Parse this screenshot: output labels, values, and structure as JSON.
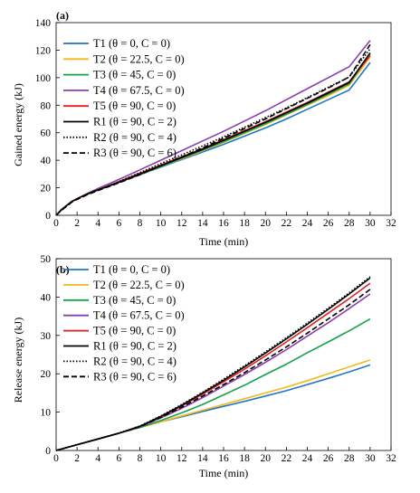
{
  "chart_data": [
    {
      "type": "line",
      "panel_label": "(a)",
      "xlabel": "Time (min)",
      "ylabel": "Gained energy (kJ)",
      "xlim": [
        0,
        32
      ],
      "ylim": [
        0,
        140
      ],
      "xticks": [
        "0",
        "2",
        "4",
        "6",
        "8",
        "10",
        "12",
        "14",
        "16",
        "18",
        "20",
        "22",
        "24",
        "26",
        "28",
        "30",
        "32"
      ],
      "yticks": [
        "0",
        "20",
        "40",
        "60",
        "80",
        "100",
        "120",
        "140"
      ],
      "grid": false,
      "legend_position": "top-left",
      "series": [
        {
          "name": "T1 (θ = 0, C = 0)",
          "color": "#1f77c4",
          "dash": "solid",
          "x": [
            0,
            0.5,
            1,
            1.5,
            2,
            3,
            4,
            6,
            8,
            10,
            12,
            14,
            16,
            18,
            20,
            22,
            24,
            26,
            28,
            30
          ],
          "y": [
            0,
            4,
            7,
            10,
            12,
            15.5,
            18.5,
            24,
            29.5,
            35,
            40.5,
            46,
            51.5,
            57.5,
            63.5,
            70,
            77,
            84,
            91,
            111
          ]
        },
        {
          "name": "T2 (θ = 22.5, C = 0)",
          "color": "#f2b71c",
          "dash": "solid",
          "x": [
            0,
            0.5,
            1,
            1.5,
            2,
            3,
            4,
            6,
            8,
            10,
            12,
            14,
            16,
            18,
            20,
            22,
            24,
            26,
            28,
            30
          ],
          "y": [
            0,
            4,
            7,
            10,
            12,
            15.5,
            18.5,
            24,
            29.5,
            35.5,
            41,
            47,
            53,
            59.5,
            66,
            73,
            80,
            87,
            94.5,
            115
          ]
        },
        {
          "name": "T3 (θ = 45, C = 0)",
          "color": "#16a04a",
          "dash": "solid",
          "x": [
            0,
            0.5,
            1,
            1.5,
            2,
            3,
            4,
            6,
            8,
            10,
            12,
            14,
            16,
            18,
            20,
            22,
            24,
            26,
            28,
            30
          ],
          "y": [
            0,
            4,
            7,
            10,
            12,
            15.5,
            18.5,
            24,
            29.5,
            35.5,
            41.5,
            47.5,
            53.5,
            60,
            66.5,
            73.5,
            80.5,
            88,
            95.5,
            117
          ]
        },
        {
          "name": "T4 (θ = 67.5, C = 0)",
          "color": "#8a3fb0",
          "dash": "solid",
          "x": [
            0,
            0.5,
            1,
            1.5,
            2,
            3,
            4,
            6,
            8,
            10,
            12,
            14,
            16,
            18,
            20,
            22,
            24,
            26,
            28,
            30
          ],
          "y": [
            0,
            4,
            7,
            10,
            12,
            16,
            19.5,
            26,
            33,
            40,
            47,
            54,
            61,
            68.5,
            76,
            84,
            92,
            100,
            108,
            127
          ]
        },
        {
          "name": "T5 (θ = 90, C = 0)",
          "color": "#e02020",
          "dash": "solid",
          "x": [
            0,
            0.5,
            1,
            1.5,
            2,
            3,
            4,
            6,
            8,
            10,
            12,
            14,
            16,
            18,
            20,
            22,
            24,
            26,
            28,
            30
          ],
          "y": [
            0,
            4,
            7,
            10,
            12,
            15.5,
            18.5,
            24.5,
            30.5,
            36.5,
            42.5,
            48.5,
            55,
            61.5,
            68,
            75,
            82,
            89.5,
            97,
            116
          ]
        },
        {
          "name": "R1 (θ = 90, C = 2)",
          "color": "#000000",
          "dash": "solid",
          "x": [
            0,
            0.5,
            1,
            1.5,
            2,
            3,
            4,
            6,
            8,
            10,
            12,
            14,
            16,
            18,
            20,
            22,
            24,
            26,
            28,
            30
          ],
          "y": [
            0,
            4,
            7,
            10,
            12,
            15.5,
            18.5,
            24,
            30,
            36,
            42,
            48,
            54.5,
            61,
            67.5,
            74.5,
            81.5,
            89,
            96.5,
            118
          ]
        },
        {
          "name": "R2 (θ = 90, C = 4)",
          "color": "#000000",
          "dash": "dotted",
          "x": [
            0,
            0.5,
            1,
            1.5,
            2,
            3,
            4,
            6,
            8,
            10,
            12,
            14,
            16,
            18,
            20,
            22,
            24,
            26,
            28,
            30
          ],
          "y": [
            0,
            4,
            7,
            10,
            12,
            15.5,
            18.5,
            24.5,
            31,
            37.5,
            44,
            50.5,
            57,
            64,
            71,
            78,
            85.5,
            93,
            100.5,
            121
          ]
        },
        {
          "name": "R3 (θ = 90, C = 6)",
          "color": "#000000",
          "dash": "dashed",
          "x": [
            0,
            0.5,
            1,
            1.5,
            2,
            3,
            4,
            6,
            8,
            10,
            12,
            14,
            16,
            18,
            20,
            22,
            24,
            26,
            28,
            30
          ],
          "y": [
            0,
            3.5,
            6.5,
            9.5,
            11.5,
            15,
            18,
            23.5,
            29.5,
            36,
            42.5,
            49,
            56,
            63,
            70,
            77.5,
            85,
            92.5,
            100.5,
            124
          ]
        }
      ]
    },
    {
      "type": "line",
      "panel_label": "(b)",
      "xlabel": "Time (min)",
      "ylabel": "Release energy (kJ)",
      "xlim": [
        0,
        32
      ],
      "ylim": [
        0,
        50
      ],
      "xticks": [
        "0",
        "2",
        "4",
        "6",
        "8",
        "10",
        "12",
        "14",
        "16",
        "18",
        "20",
        "22",
        "24",
        "26",
        "28",
        "30",
        "32"
      ],
      "yticks": [
        "0",
        "10",
        "20",
        "30",
        "40",
        "50"
      ],
      "grid": false,
      "legend_position": "top-left",
      "series": [
        {
          "name": "T1 (θ = 0, C = 0)",
          "color": "#1f77c4",
          "dash": "solid",
          "x": [
            0,
            2,
            4,
            6,
            8,
            10,
            12,
            14,
            16,
            18,
            20,
            22,
            24,
            26,
            28,
            30
          ],
          "y": [
            0,
            1.5,
            3,
            4.5,
            6,
            7.5,
            8.8,
            10.2,
            11.5,
            12.8,
            14.2,
            15.6,
            17.2,
            18.8,
            20.5,
            22.3
          ]
        },
        {
          "name": "T2 (θ = 22.5, C = 0)",
          "color": "#f2b71c",
          "dash": "solid",
          "x": [
            0,
            2,
            4,
            6,
            8,
            10,
            12,
            14,
            16,
            18,
            20,
            22,
            24,
            26,
            28,
            30
          ],
          "y": [
            0,
            1.5,
            3,
            4.5,
            6,
            7.5,
            9,
            10.5,
            12,
            13.5,
            15,
            16.5,
            18.2,
            20,
            21.8,
            23.6
          ]
        },
        {
          "name": "T3 (θ = 45, C = 0)",
          "color": "#16a04a",
          "dash": "solid",
          "x": [
            0,
            2,
            4,
            6,
            8,
            10,
            12,
            14,
            16,
            18,
            20,
            22,
            24,
            26,
            28,
            30
          ],
          "y": [
            0,
            1.5,
            3,
            4.5,
            6,
            7.8,
            9.8,
            12,
            14.5,
            17,
            19.8,
            22.5,
            25.5,
            28.3,
            31.2,
            34.3
          ]
        },
        {
          "name": "T4 (θ = 67.5, C = 0)",
          "color": "#8a3fb0",
          "dash": "solid",
          "x": [
            0,
            2,
            4,
            6,
            8,
            10,
            12,
            14,
            16,
            18,
            20,
            22,
            24,
            26,
            28,
            30
          ],
          "y": [
            0,
            1.5,
            3,
            4.5,
            6.2,
            8.5,
            11,
            13.8,
            16.8,
            19.8,
            23,
            26.3,
            29.8,
            33.3,
            37,
            40.8
          ]
        },
        {
          "name": "T5 (θ = 90, C = 0)",
          "color": "#e02020",
          "dash": "solid",
          "x": [
            0,
            2,
            4,
            6,
            8,
            10,
            12,
            14,
            16,
            18,
            20,
            22,
            24,
            26,
            28,
            30
          ],
          "y": [
            0,
            1.5,
            3,
            4.5,
            6.3,
            8.8,
            11.6,
            14.7,
            17.9,
            21.2,
            24.7,
            28.3,
            32,
            35.8,
            39.6,
            43.6
          ]
        },
        {
          "name": "R1 (θ = 90, C = 2)",
          "color": "#000000",
          "dash": "solid",
          "x": [
            0,
            2,
            4,
            6,
            8,
            10,
            12,
            14,
            16,
            18,
            20,
            22,
            24,
            26,
            28,
            30
          ],
          "y": [
            0,
            1.5,
            3,
            4.5,
            6.3,
            8.9,
            11.8,
            15,
            18.3,
            21.8,
            25.4,
            29.1,
            32.9,
            36.8,
            40.8,
            45
          ]
        },
        {
          "name": "R2 (θ = 90, C = 4)",
          "color": "#000000",
          "dash": "dotted",
          "x": [
            0,
            2,
            4,
            6,
            8,
            10,
            12,
            14,
            16,
            18,
            20,
            22,
            24,
            26,
            28,
            30
          ],
          "y": [
            0,
            1.5,
            3,
            4.5,
            6.4,
            9,
            12,
            15.2,
            18.6,
            22.1,
            25.7,
            29.4,
            33.2,
            37.1,
            41.1,
            45.3
          ]
        },
        {
          "name": "R3 (θ = 90, C = 6)",
          "color": "#000000",
          "dash": "dashed",
          "x": [
            0,
            2,
            4,
            6,
            8,
            10,
            12,
            14,
            16,
            18,
            20,
            22,
            24,
            26,
            28,
            30
          ],
          "y": [
            0,
            1.5,
            3,
            4.5,
            6.2,
            8.6,
            11.3,
            14.2,
            17.2,
            20.3,
            23.6,
            27,
            30.6,
            34.3,
            38,
            42
          ]
        }
      ]
    }
  ]
}
